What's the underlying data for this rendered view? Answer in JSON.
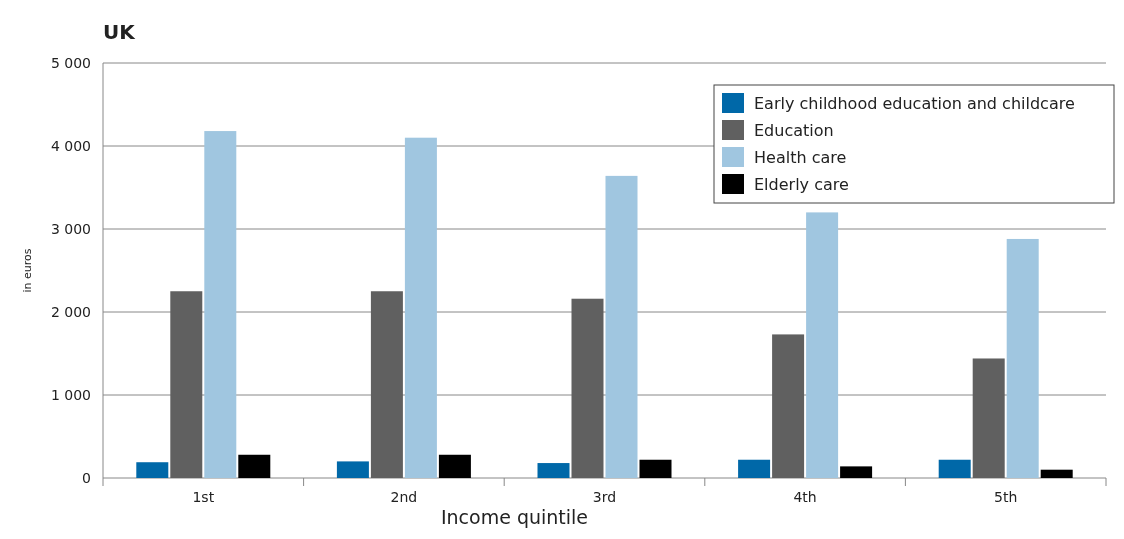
{
  "chart_data": {
    "type": "bar",
    "title": "UK",
    "xlabel": "Income quintile",
    "ylabel": "in euros",
    "categories": [
      "1st",
      "2nd",
      "3rd",
      "4th",
      "5th"
    ],
    "series": [
      {
        "name": "Early childhood education and childcare",
        "color": "#0068a8",
        "values": [
          190,
          200,
          180,
          220,
          220
        ]
      },
      {
        "name": "Education",
        "color": "#606060",
        "values": [
          2250,
          2250,
          2160,
          1730,
          1440
        ]
      },
      {
        "name": "Health care",
        "color": "#a0c6e0",
        "values": [
          4180,
          4100,
          3640,
          3200,
          2880
        ]
      },
      {
        "name": "Elderly care",
        "color": "#000000",
        "values": [
          280,
          280,
          220,
          140,
          100
        ]
      }
    ],
    "ylim": [
      0,
      5000
    ],
    "yticks": [
      {
        "value": 0,
        "label": "0"
      },
      {
        "value": 1000,
        "label": "1 000"
      },
      {
        "value": 2000,
        "label": "2 000"
      },
      {
        "value": 3000,
        "label": "3 000"
      },
      {
        "value": 4000,
        "label": "4 000"
      },
      {
        "value": 5000,
        "label": "5 000"
      }
    ],
    "grid": "y",
    "legend": "top right"
  }
}
